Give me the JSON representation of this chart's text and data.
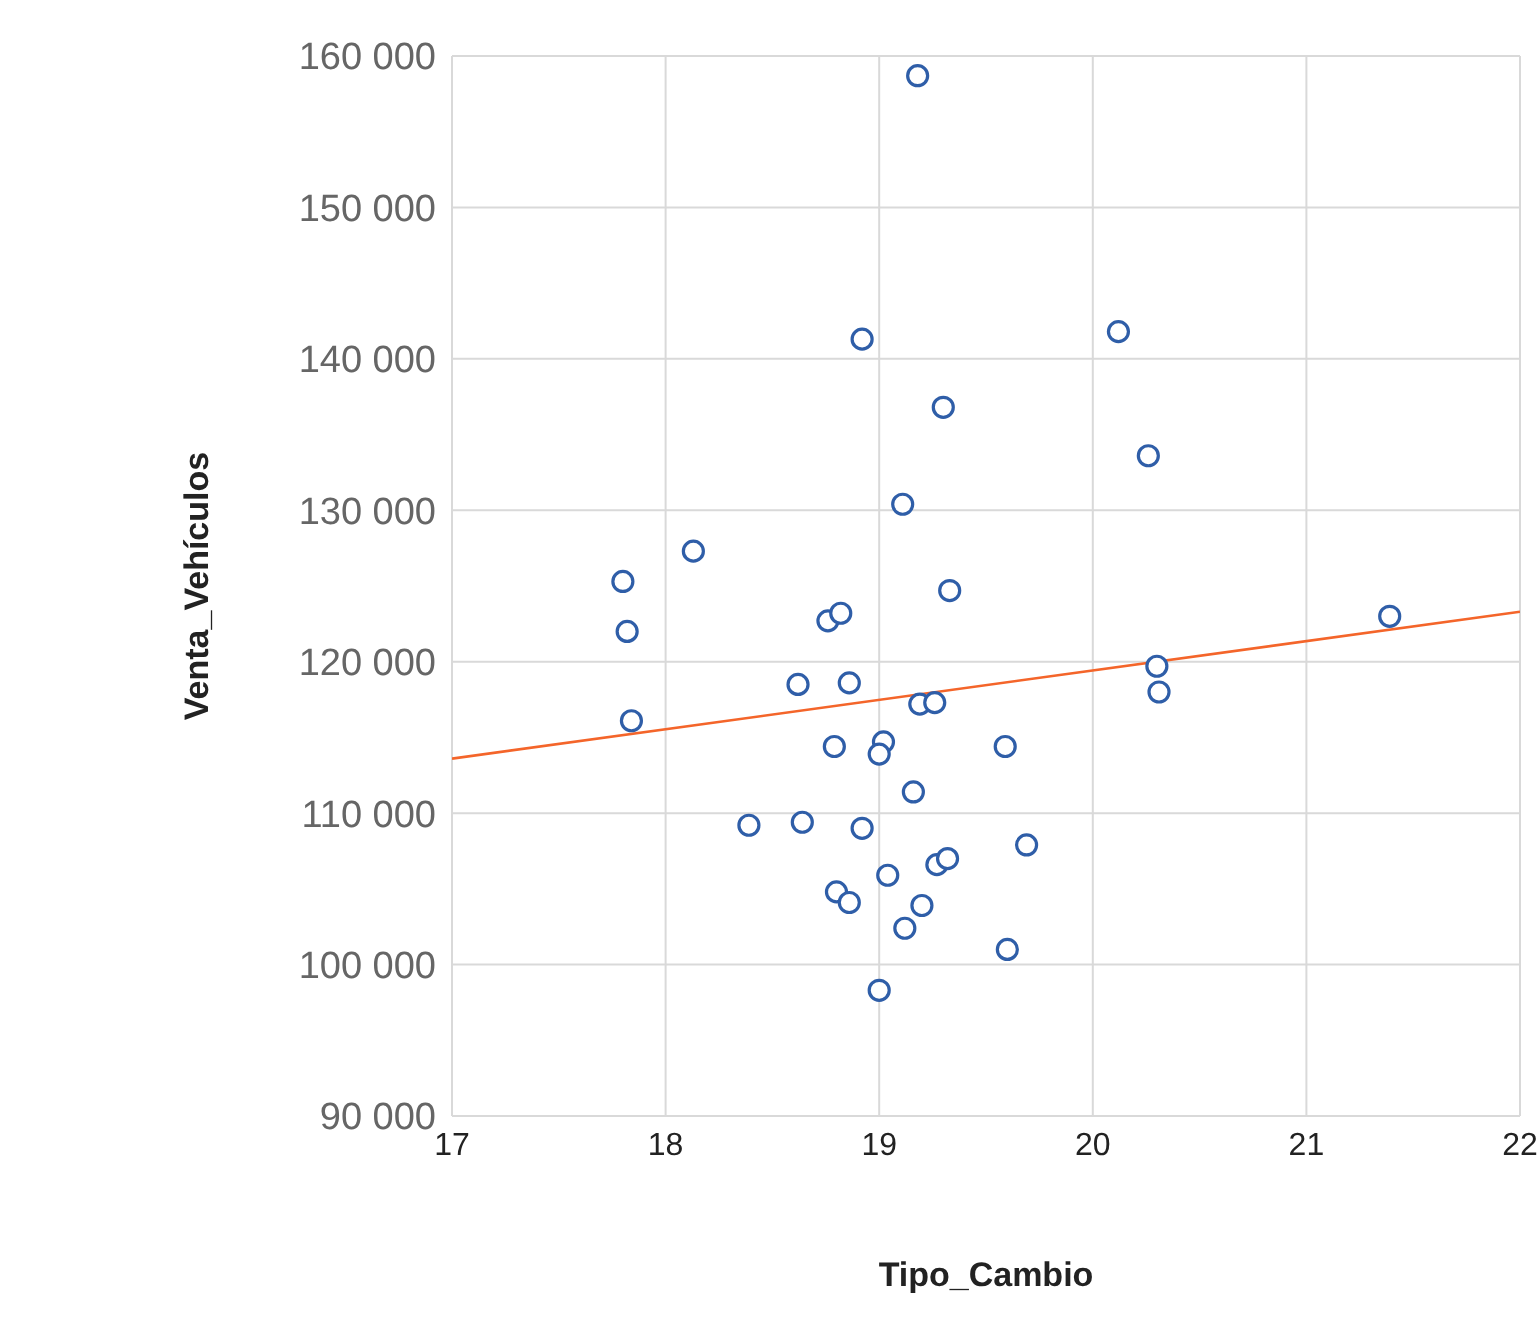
{
  "chart_data": {
    "type": "scatter",
    "xlabel": "Tipo_Cambio",
    "ylabel": "Venta_Vehículos",
    "xlim": [
      17,
      22
    ],
    "xticks": [
      17,
      18,
      19,
      20,
      21,
      22
    ],
    "ylim": [
      90000,
      160000
    ],
    "yticks": [
      {
        "value": 90000,
        "label": "90 000"
      },
      {
        "value": 100000,
        "label": "100 000"
      },
      {
        "value": 110000,
        "label": "110 000"
      },
      {
        "value": 120000,
        "label": "120 000"
      },
      {
        "value": 130000,
        "label": "130 000"
      },
      {
        "value": 140000,
        "label": "140 000"
      },
      {
        "value": 150000,
        "label": "150 000"
      },
      {
        "value": 160000,
        "label": "160 000"
      }
    ],
    "grid": true,
    "legend": false,
    "series": [
      {
        "color": "#2f5ea8",
        "marker": "circle",
        "x": [
          19.18,
          18.92,
          19.3,
          19.11,
          18.13,
          17.8,
          17.82,
          19.33,
          18.76,
          18.82,
          18.62,
          18.86,
          17.84,
          19.19,
          19.26,
          18.79,
          19.02,
          19.0,
          19.16,
          18.39,
          18.64,
          18.92,
          19.04,
          19.27,
          19.32,
          18.8,
          18.86,
          19.2,
          19.12,
          19.0,
          20.12,
          20.26,
          21.39,
          20.3,
          20.31,
          19.59,
          19.69,
          19.6
        ],
        "values": [
          158700,
          141300,
          136800,
          130400,
          127300,
          125300,
          122000,
          124700,
          122700,
          123200,
          118500,
          118600,
          116100,
          117200,
          117300,
          114400,
          114700,
          113900,
          111400,
          109200,
          109400,
          109000,
          105900,
          106600,
          107000,
          104800,
          104100,
          103900,
          102400,
          98300,
          141800,
          133600,
          123000,
          119700,
          118000,
          114400,
          107900,
          101000
        ]
      },
      {
        "type": "line",
        "color": "#f4652a",
        "marker": "none",
        "x": [
          17,
          22
        ],
        "values": [
          113600,
          123300
        ]
      }
    ]
  }
}
